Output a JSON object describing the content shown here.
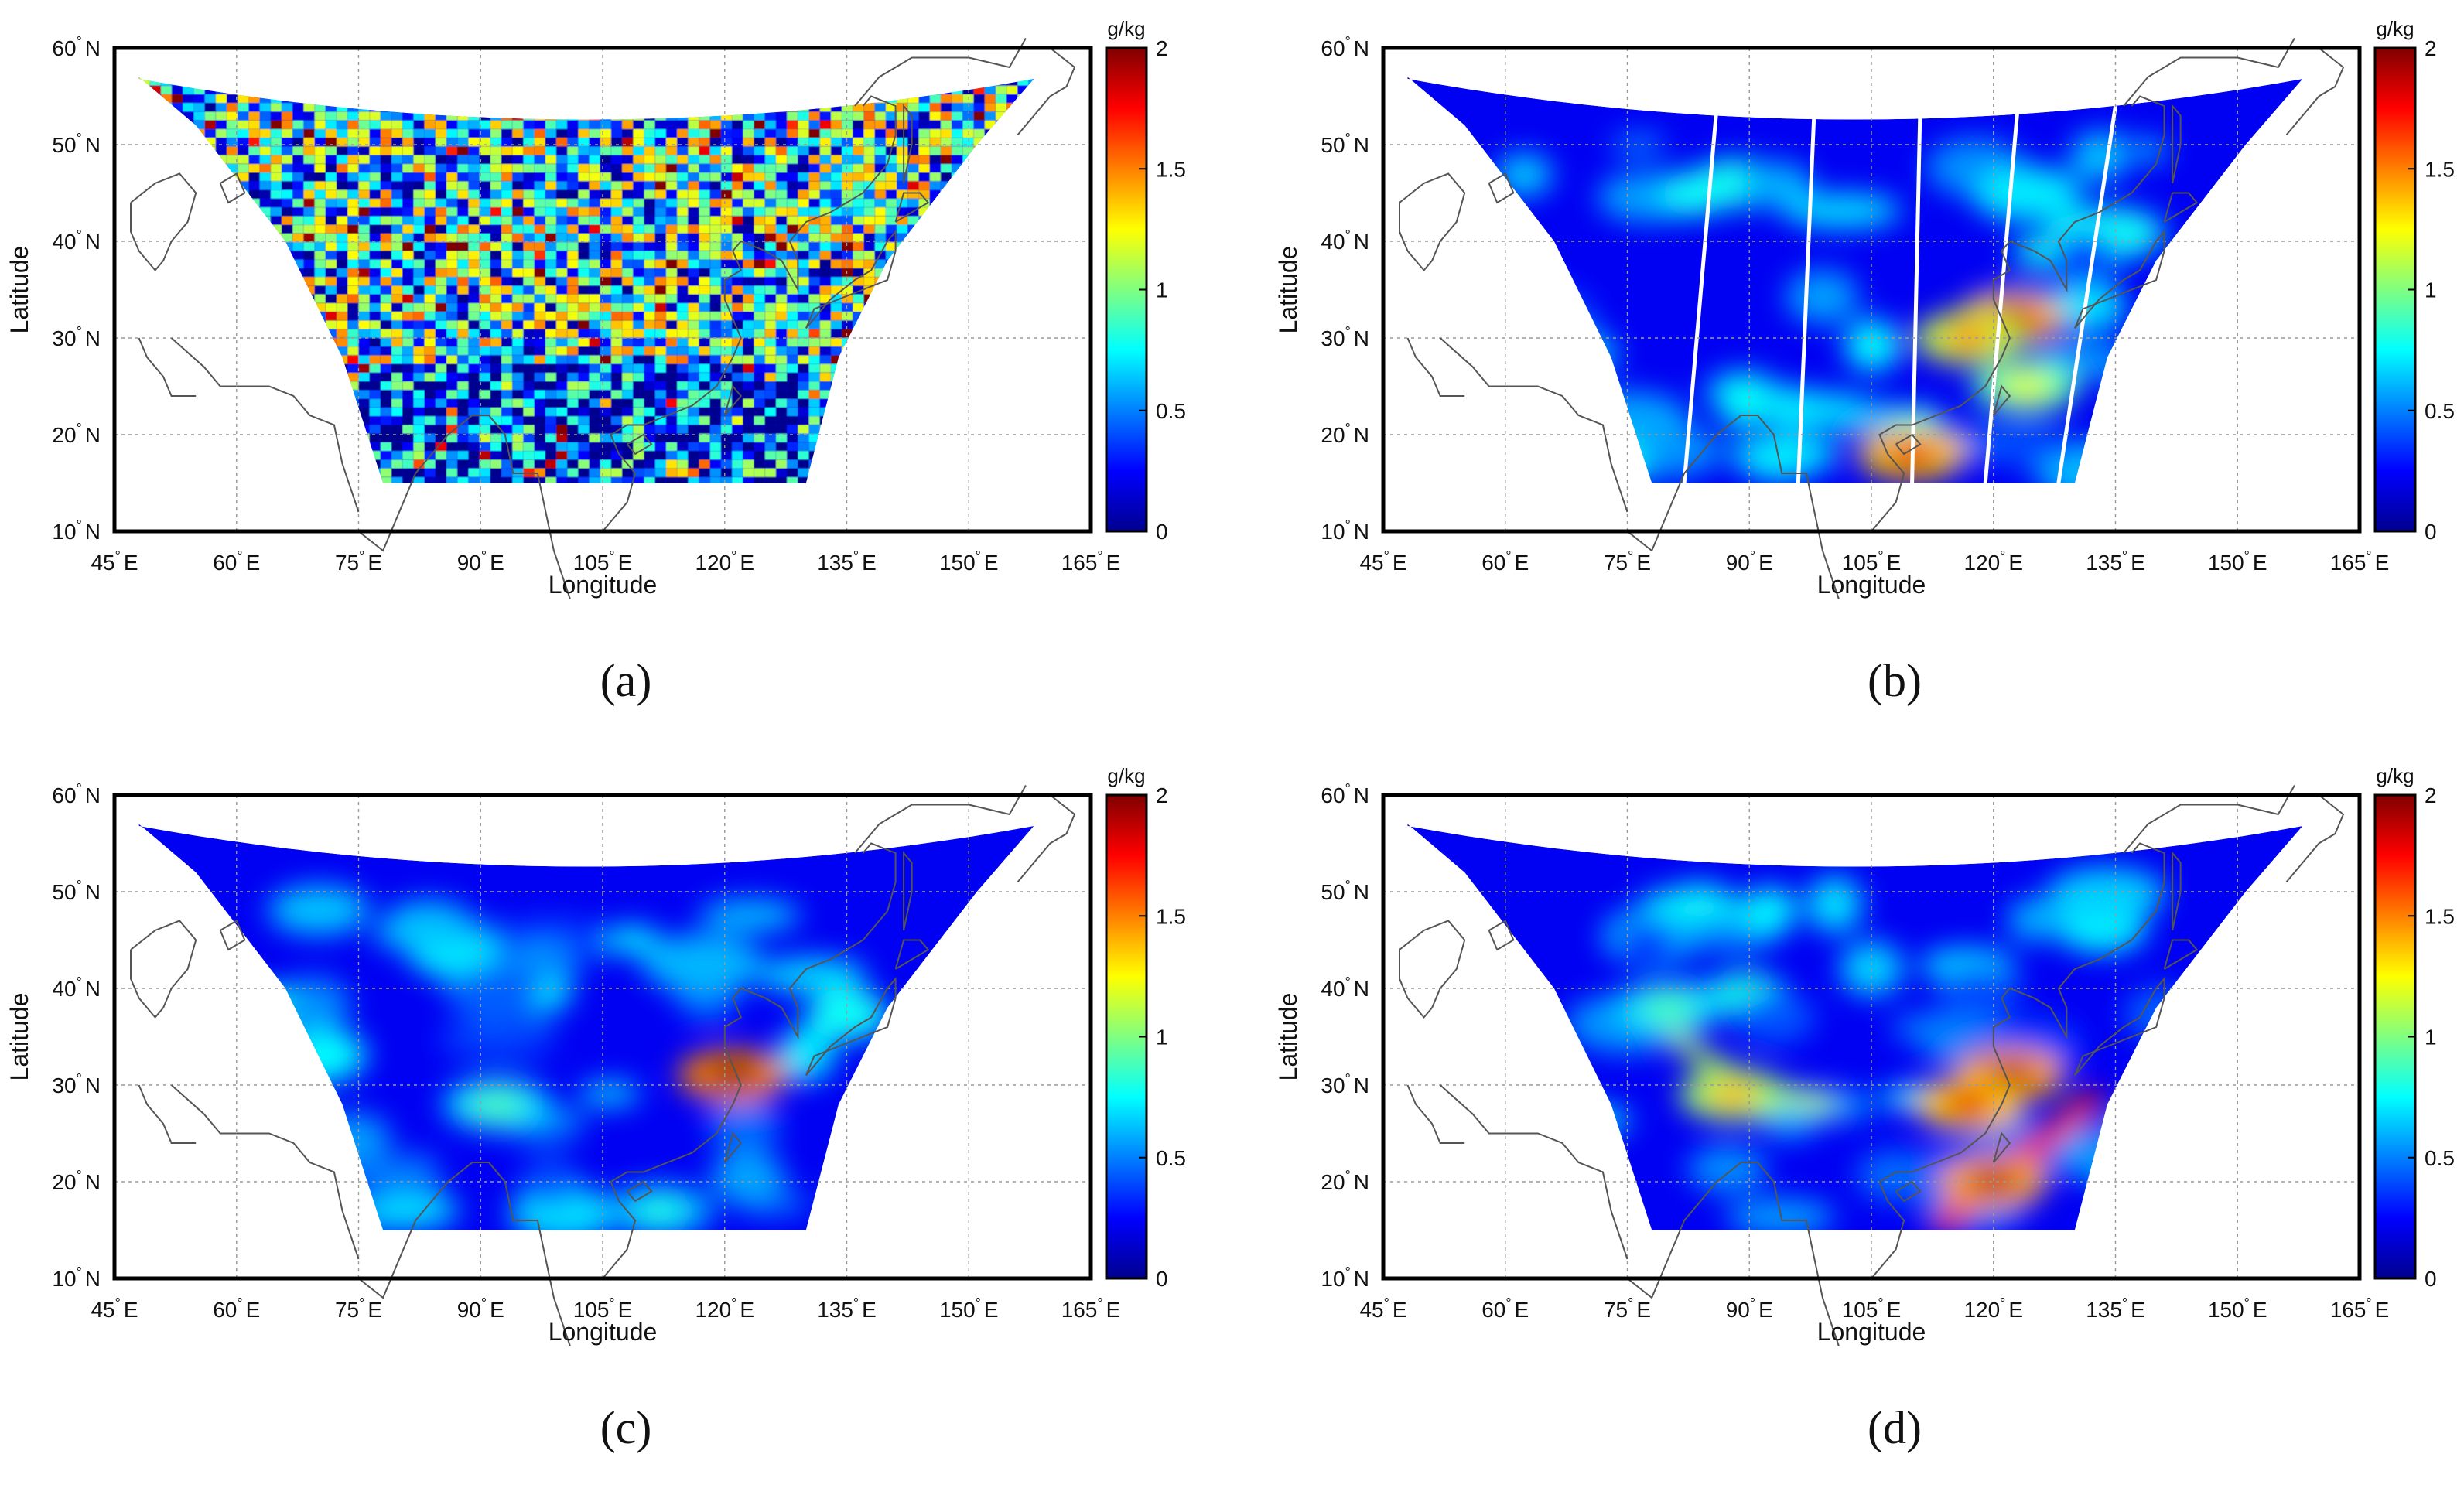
{
  "figure": {
    "unit": "g/kg",
    "xlabel": "Longitude",
    "ylabel": "Latitude",
    "deg": "°",
    "x_ticks": [
      {
        "value": 45,
        "label": "45",
        "suffix": "E"
      },
      {
        "value": 60,
        "label": "60",
        "suffix": "E"
      },
      {
        "value": 75,
        "label": "75",
        "suffix": "E"
      },
      {
        "value": 90,
        "label": "90",
        "suffix": "E"
      },
      {
        "value": 105,
        "label": "105",
        "suffix": "E"
      },
      {
        "value": 120,
        "label": "120",
        "suffix": "E"
      },
      {
        "value": 135,
        "label": "135",
        "suffix": "E"
      },
      {
        "value": 150,
        "label": "150",
        "suffix": "E"
      },
      {
        "value": 165,
        "label": "165",
        "suffix": "E"
      }
    ],
    "y_ticks": [
      {
        "value": 10,
        "label": "10",
        "suffix": "N"
      },
      {
        "value": 20,
        "label": "20",
        "suffix": "N"
      },
      {
        "value": 30,
        "label": "30",
        "suffix": "N"
      },
      {
        "value": 40,
        "label": "40",
        "suffix": "N"
      },
      {
        "value": 50,
        "label": "50",
        "suffix": "N"
      },
      {
        "value": 60,
        "label": "60",
        "suffix": "N"
      }
    ],
    "colorbar_ticks": [
      {
        "value": 0,
        "label": "0"
      },
      {
        "value": 0.5,
        "label": "0.5"
      },
      {
        "value": 1,
        "label": "1"
      },
      {
        "value": 1.5,
        "label": "1.5"
      },
      {
        "value": 2,
        "label": "2"
      }
    ],
    "colormap": [
      "#00008f",
      "#0000ff",
      "#0080ff",
      "#00ffff",
      "#80ff80",
      "#ffff00",
      "#ff8000",
      "#ff0000",
      "#800000"
    ]
  },
  "chart_data": [
    {
      "type": "heatmap",
      "panel_label": "(a)",
      "xlabel": "Longitude",
      "ylabel": "Latitude",
      "xlim": [
        45,
        165
      ],
      "ylim": [
        10,
        60
      ],
      "colorbar": {
        "label": "g/kg",
        "range": [
          0,
          2
        ]
      },
      "grid": true,
      "field_style": "noisy",
      "hotspots": [
        {
          "lon": 105,
          "lat": 42,
          "value": 1.2
        },
        {
          "lon": 120,
          "lat": 36,
          "value": 1.4
        },
        {
          "lon": 112,
          "lat": 16,
          "value": 1.6
        }
      ]
    },
    {
      "type": "heatmap",
      "panel_label": "(b)",
      "xlabel": "Longitude",
      "ylabel": "Latitude",
      "xlim": [
        45,
        165
      ],
      "ylim": [
        10,
        60
      ],
      "colorbar": {
        "label": "g/kg",
        "range": [
          0,
          2
        ]
      },
      "grid": true,
      "field_style": "smooth-with-gaps",
      "hotspots": [
        {
          "lon": 122,
          "lat": 32,
          "value": 1.9
        },
        {
          "lon": 117,
          "lat": 30,
          "value": 1.5
        },
        {
          "lon": 110,
          "lat": 18,
          "value": 1.8
        },
        {
          "lon": 124,
          "lat": 25,
          "value": 1.2
        }
      ]
    },
    {
      "type": "heatmap",
      "panel_label": "(c)",
      "xlabel": "Longitude",
      "ylabel": "Latitude",
      "xlim": [
        45,
        165
      ],
      "ylim": [
        10,
        60
      ],
      "colorbar": {
        "label": "g/kg",
        "range": [
          0,
          2
        ]
      },
      "grid": true,
      "field_style": "smooth",
      "hotspots": [
        {
          "lon": 121,
          "lat": 31,
          "value": 2.0
        },
        {
          "lon": 92,
          "lat": 28,
          "value": 0.9
        },
        {
          "lon": 112,
          "lat": 17,
          "value": 0.8
        }
      ]
    },
    {
      "type": "heatmap",
      "panel_label": "(d)",
      "xlabel": "Longitude",
      "ylabel": "Latitude",
      "xlim": [
        45,
        165
      ],
      "ylim": [
        10,
        60
      ],
      "colorbar": {
        "label": "g/kg",
        "range": [
          0,
          2
        ]
      },
      "grid": true,
      "field_style": "bands",
      "hotspots": [
        {
          "lon": 122,
          "lat": 31,
          "value": 1.9
        },
        {
          "lon": 117,
          "lat": 28,
          "value": 1.8
        },
        {
          "lon": 120,
          "lat": 20,
          "value": 1.9
        },
        {
          "lon": 88,
          "lat": 29,
          "value": 1.4
        },
        {
          "lon": 80,
          "lat": 38,
          "value": 0.9
        }
      ]
    }
  ]
}
